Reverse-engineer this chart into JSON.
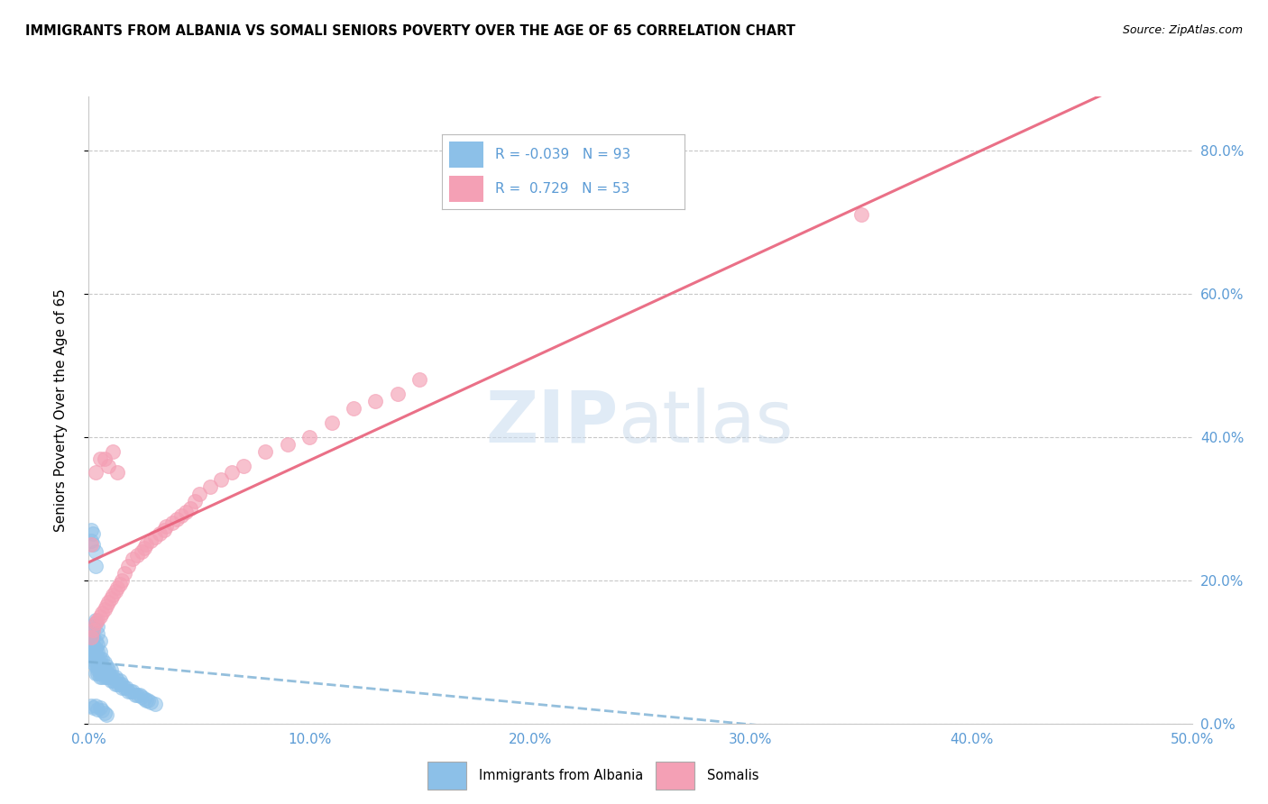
{
  "title": "IMMIGRANTS FROM ALBANIA VS SOMALI SENIORS POVERTY OVER THE AGE OF 65 CORRELATION CHART",
  "source": "Source: ZipAtlas.com",
  "ylabel": "Seniors Poverty Over the Age of 65",
  "legend_albania": "Immigrants from Albania",
  "legend_somali": "Somalis",
  "albania_R": -0.039,
  "albania_N": 93,
  "somali_R": 0.729,
  "somali_N": 53,
  "xlim": [
    0.0,
    0.5
  ],
  "ylim": [
    0.0,
    0.875
  ],
  "yticks": [
    0.0,
    0.2,
    0.4,
    0.6,
    0.8
  ],
  "xticks": [
    0.0,
    0.1,
    0.2,
    0.3,
    0.4,
    0.5
  ],
  "color_albania": "#8CC0E8",
  "color_somali": "#F4A0B5",
  "color_trendline_albania": "#7AAFD4",
  "color_trendline_somali": "#E8607A",
  "color_axis_text": "#5B9BD5",
  "background_color": "#FFFFFF",
  "grid_color": "#C8C8C8",
  "albania_x": [
    0.001,
    0.001,
    0.001,
    0.002,
    0.002,
    0.002,
    0.002,
    0.002,
    0.003,
    0.003,
    0.003,
    0.003,
    0.003,
    0.003,
    0.003,
    0.004,
    0.004,
    0.004,
    0.004,
    0.004,
    0.004,
    0.004,
    0.005,
    0.005,
    0.005,
    0.005,
    0.005,
    0.005,
    0.005,
    0.006,
    0.006,
    0.006,
    0.006,
    0.006,
    0.007,
    0.007,
    0.007,
    0.007,
    0.008,
    0.008,
    0.008,
    0.009,
    0.009,
    0.009,
    0.01,
    0.01,
    0.01,
    0.011,
    0.011,
    0.012,
    0.012,
    0.013,
    0.013,
    0.014,
    0.014,
    0.015,
    0.015,
    0.016,
    0.017,
    0.018,
    0.019,
    0.02,
    0.021,
    0.022,
    0.023,
    0.024,
    0.025,
    0.026,
    0.027,
    0.028,
    0.03,
    0.001,
    0.001,
    0.002,
    0.002,
    0.003,
    0.003,
    0.001,
    0.002,
    0.003,
    0.004,
    0.005,
    0.006,
    0.007,
    0.008,
    0.004,
    0.004,
    0.005,
    0.003,
    0.002,
    0.002,
    0.001,
    0.003
  ],
  "albania_y": [
    0.095,
    0.105,
    0.12,
    0.085,
    0.095,
    0.1,
    0.11,
    0.12,
    0.07,
    0.08,
    0.085,
    0.09,
    0.1,
    0.105,
    0.115,
    0.07,
    0.075,
    0.08,
    0.085,
    0.09,
    0.1,
    0.11,
    0.065,
    0.07,
    0.075,
    0.08,
    0.085,
    0.09,
    0.1,
    0.065,
    0.07,
    0.075,
    0.08,
    0.09,
    0.065,
    0.07,
    0.075,
    0.085,
    0.065,
    0.07,
    0.08,
    0.065,
    0.07,
    0.075,
    0.06,
    0.065,
    0.075,
    0.06,
    0.065,
    0.055,
    0.065,
    0.055,
    0.06,
    0.055,
    0.06,
    0.05,
    0.055,
    0.05,
    0.05,
    0.045,
    0.045,
    0.045,
    0.04,
    0.04,
    0.04,
    0.038,
    0.035,
    0.033,
    0.032,
    0.03,
    0.028,
    0.27,
    0.255,
    0.265,
    0.25,
    0.24,
    0.22,
    0.025,
    0.022,
    0.025,
    0.02,
    0.022,
    0.018,
    0.015,
    0.012,
    0.135,
    0.125,
    0.115,
    0.145,
    0.135,
    0.13,
    0.13,
    0.14
  ],
  "somali_x": [
    0.001,
    0.002,
    0.003,
    0.004,
    0.005,
    0.006,
    0.007,
    0.008,
    0.009,
    0.01,
    0.011,
    0.012,
    0.013,
    0.014,
    0.015,
    0.016,
    0.018,
    0.02,
    0.022,
    0.024,
    0.025,
    0.026,
    0.028,
    0.03,
    0.032,
    0.034,
    0.035,
    0.038,
    0.04,
    0.042,
    0.044,
    0.046,
    0.048,
    0.05,
    0.055,
    0.06,
    0.065,
    0.07,
    0.08,
    0.09,
    0.1,
    0.11,
    0.12,
    0.13,
    0.14,
    0.15,
    0.001,
    0.003,
    0.005,
    0.007,
    0.009,
    0.011,
    0.013
  ],
  "somali_y": [
    0.12,
    0.13,
    0.14,
    0.145,
    0.15,
    0.155,
    0.16,
    0.165,
    0.17,
    0.175,
    0.18,
    0.185,
    0.19,
    0.195,
    0.2,
    0.21,
    0.22,
    0.23,
    0.235,
    0.24,
    0.245,
    0.25,
    0.255,
    0.26,
    0.265,
    0.27,
    0.275,
    0.28,
    0.285,
    0.29,
    0.295,
    0.3,
    0.31,
    0.32,
    0.33,
    0.34,
    0.35,
    0.36,
    0.38,
    0.39,
    0.4,
    0.42,
    0.44,
    0.45,
    0.46,
    0.48,
    0.25,
    0.35,
    0.37,
    0.37,
    0.36,
    0.38,
    0.35
  ],
  "somali_outlier_x": [
    0.35
  ],
  "somali_outlier_y": [
    0.71
  ]
}
